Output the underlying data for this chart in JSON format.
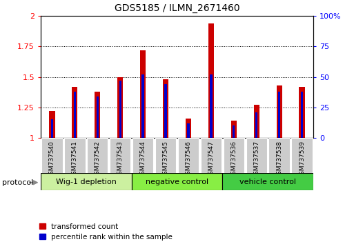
{
  "title": "GDS5185 / ILMN_2671460",
  "samples": [
    "GSM737540",
    "GSM737541",
    "GSM737542",
    "GSM737543",
    "GSM737544",
    "GSM737545",
    "GSM737546",
    "GSM737547",
    "GSM737536",
    "GSM737537",
    "GSM737538",
    "GSM737539"
  ],
  "transformed_count": [
    1.22,
    1.42,
    1.38,
    1.5,
    1.72,
    1.48,
    1.16,
    1.94,
    1.14,
    1.27,
    1.43,
    1.42
  ],
  "percentile_rank": [
    15,
    38,
    34,
    47,
    52,
    44,
    12,
    52,
    10,
    21,
    38,
    38
  ],
  "groups": [
    {
      "label": "Wig-1 depletion",
      "start": 0,
      "end": 4,
      "color": "#ccf0a0"
    },
    {
      "label": "negative control",
      "start": 4,
      "end": 8,
      "color": "#88ee44"
    },
    {
      "label": "vehicle control",
      "start": 8,
      "end": 12,
      "color": "#44cc44"
    }
  ],
  "bar_color_red": "#cc0000",
  "bar_color_blue": "#0000cc",
  "ylim_left": [
    1.0,
    2.0
  ],
  "ylim_right": [
    0,
    100
  ],
  "yticks_left": [
    1.0,
    1.25,
    1.5,
    1.75,
    2.0
  ],
  "yticks_right": [
    0,
    25,
    50,
    75,
    100
  ],
  "tick_area_color": "#cccccc",
  "red_bar_width": 0.25,
  "blue_bar_width": 0.1,
  "legend_red": "transformed count",
  "legend_blue": "percentile rank within the sample",
  "xlabel_protocol": "protocol"
}
